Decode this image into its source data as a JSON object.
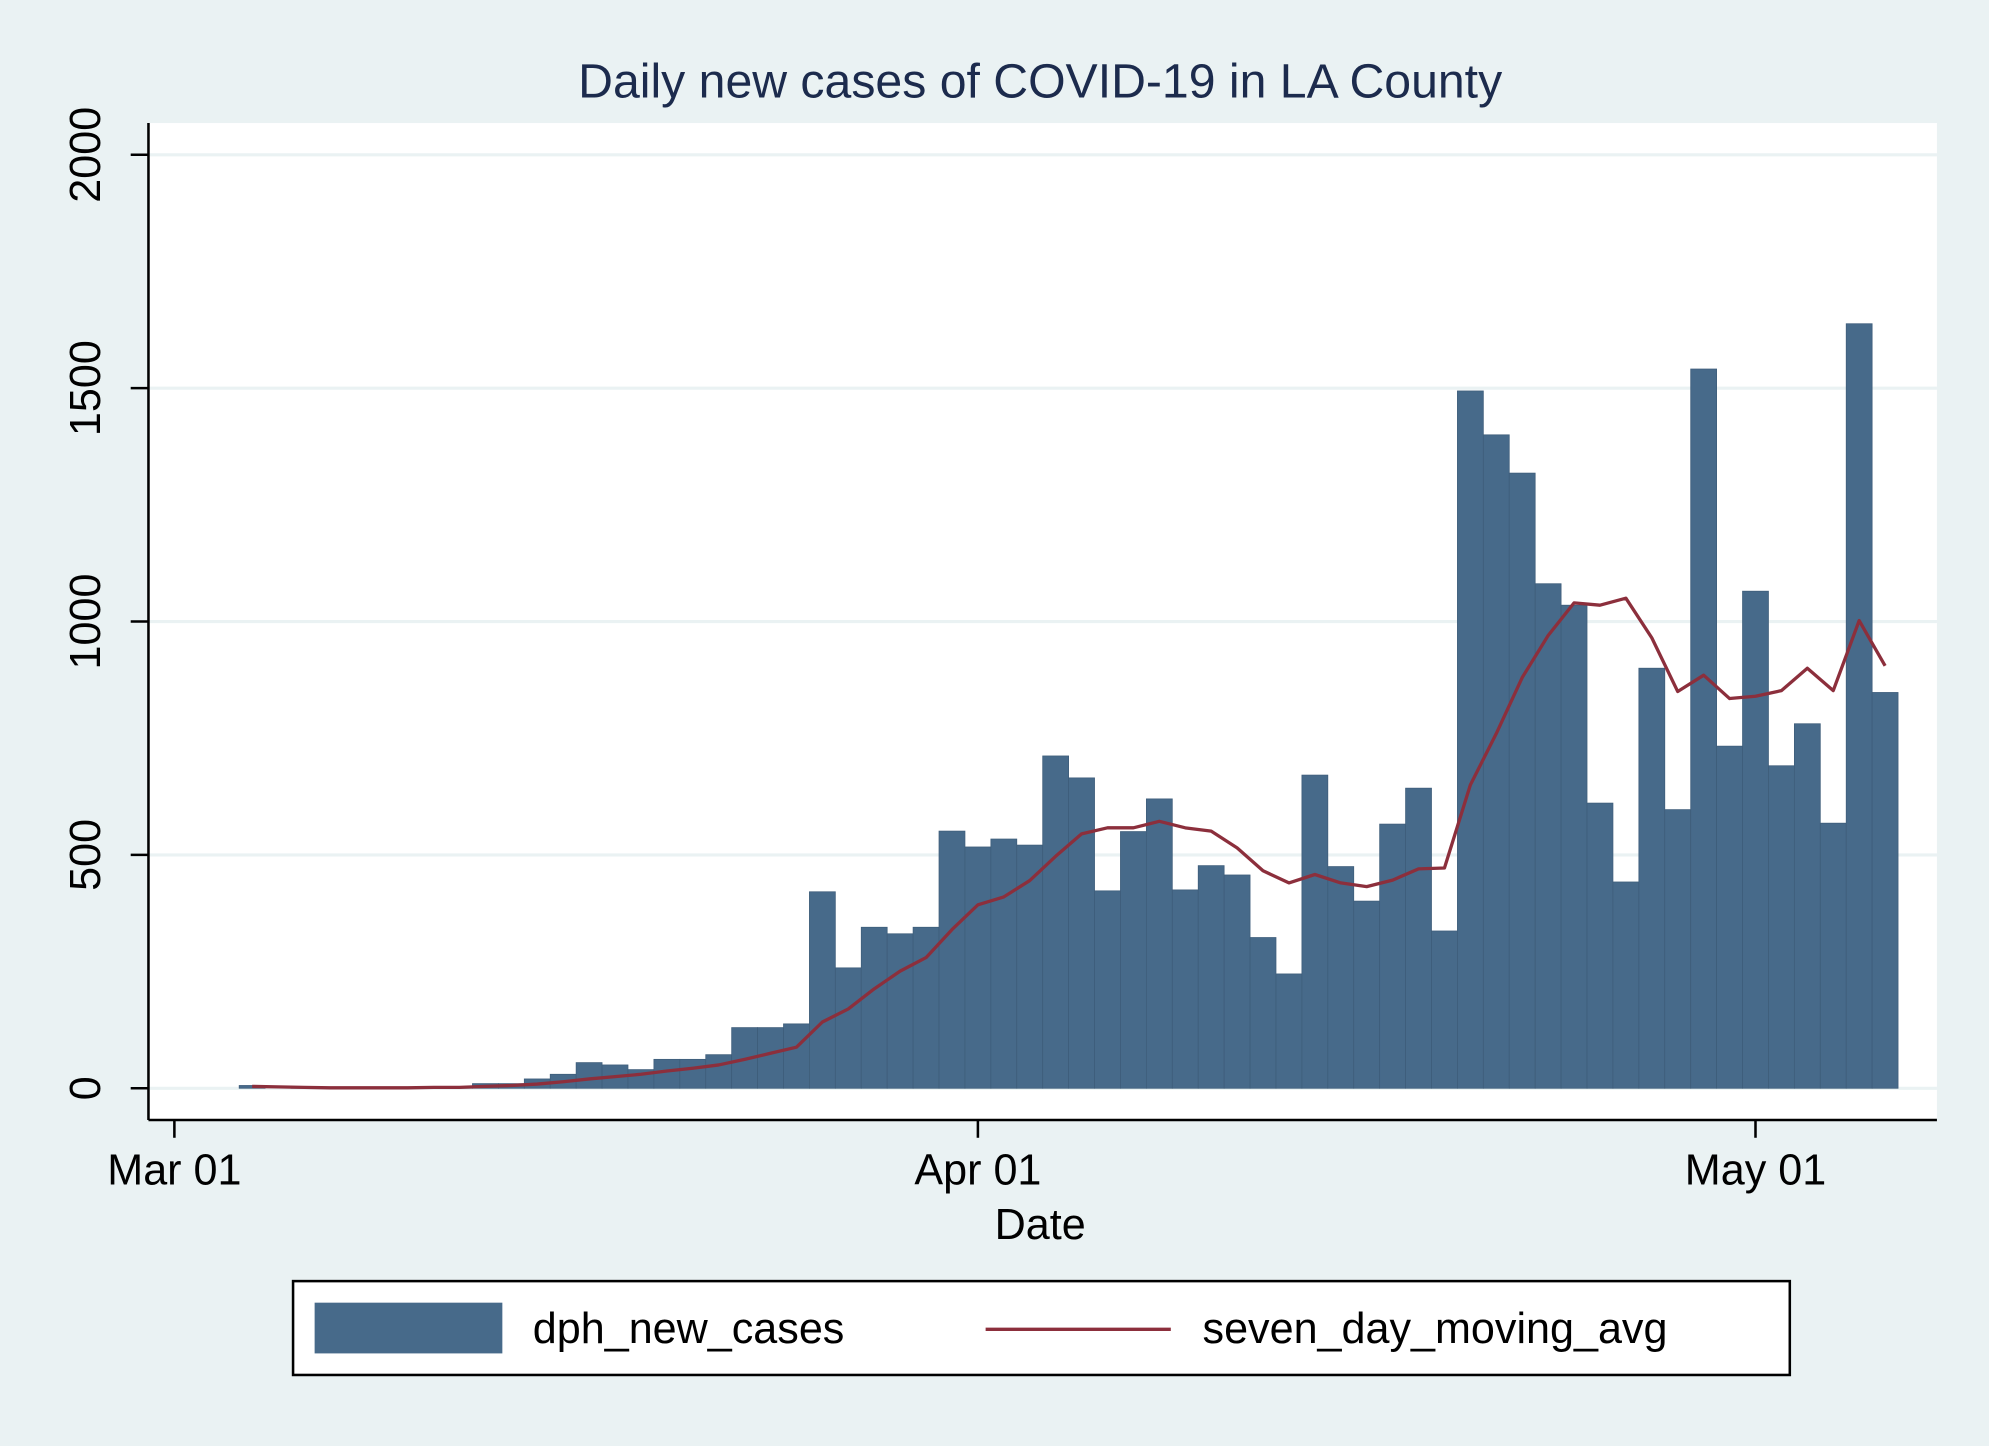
{
  "chart_data": {
    "type": "bar",
    "title": "Daily new cases of COVID-19 in LA County",
    "x_label": "Date",
    "x": [
      "Mar 04",
      "Mar 05",
      "Mar 06",
      "Mar 07",
      "Mar 08",
      "Mar 09",
      "Mar 10",
      "Mar 11",
      "Mar 12",
      "Mar 13",
      "Mar 14",
      "Mar 15",
      "Mar 16",
      "Mar 17",
      "Mar 18",
      "Mar 19",
      "Mar 20",
      "Mar 21",
      "Mar 22",
      "Mar 23",
      "Mar 24",
      "Mar 25",
      "Mar 26",
      "Mar 27",
      "Mar 28",
      "Mar 29",
      "Mar 30",
      "Mar 31",
      "Apr 01",
      "Apr 02",
      "Apr 03",
      "Apr 04",
      "Apr 05",
      "Apr 06",
      "Apr 07",
      "Apr 08",
      "Apr 09",
      "Apr 10",
      "Apr 11",
      "Apr 12",
      "Apr 13",
      "Apr 14",
      "Apr 15",
      "Apr 16",
      "Apr 17",
      "Apr 18",
      "Apr 19",
      "Apr 20",
      "Apr 21",
      "Apr 22",
      "Apr 23",
      "Apr 24",
      "Apr 25",
      "Apr 26",
      "Apr 27",
      "Apr 28",
      "Apr 29",
      "Apr 30",
      "May 01",
      "May 02",
      "May 03",
      "May 04",
      "May 05",
      "May 06"
    ],
    "series": [
      {
        "name": "dph_new_cases",
        "type": "bar",
        "color": "#476a8a",
        "values": [
          6,
          0,
          1,
          1,
          0,
          1,
          1,
          2,
          2,
          10,
          10,
          20,
          30,
          55,
          50,
          40,
          62,
          62,
          72,
          130,
          130,
          138,
          421,
          258,
          345,
          331,
          345,
          551,
          517,
          534,
          521,
          712,
          665,
          423,
          550,
          620,
          425,
          477,
          457,
          323,
          245,
          671,
          475,
          401,
          566,
          643,
          337,
          1494,
          1400,
          1318,
          1081,
          1035,
          611,
          442,
          900,
          597,
          1541,
          733,
          1065,
          691,
          781,
          568,
          1638,
          848
        ]
      },
      {
        "name": "seven_day_moving_avg",
        "type": "line",
        "color": "#8c2f3c",
        "values": [
          4,
          3,
          2,
          1,
          1,
          1,
          1,
          2,
          2,
          4,
          6,
          9,
          14,
          20,
          25,
          30,
          37,
          43,
          50,
          62,
          75,
          88,
          142,
          170,
          213,
          251,
          280,
          340,
          393,
          410,
          445,
          497,
          545,
          558,
          558,
          572,
          558,
          551,
          515,
          466,
          440,
          458,
          440,
          432,
          446,
          470,
          472,
          650,
          760,
          880,
          970,
          1040,
          1035,
          1050,
          965,
          850,
          885,
          835,
          840,
          852,
          900,
          852,
          1002,
          905
        ]
      }
    ],
    "xlim": [
      "Feb 28",
      "May 08"
    ],
    "xticks": [
      "Mar 01",
      "Apr 01",
      "May 01"
    ],
    "ylim": [
      -68,
      2068
    ],
    "yticks": [
      0,
      500,
      1000,
      1500,
      2000
    ],
    "grid": true
  }
}
